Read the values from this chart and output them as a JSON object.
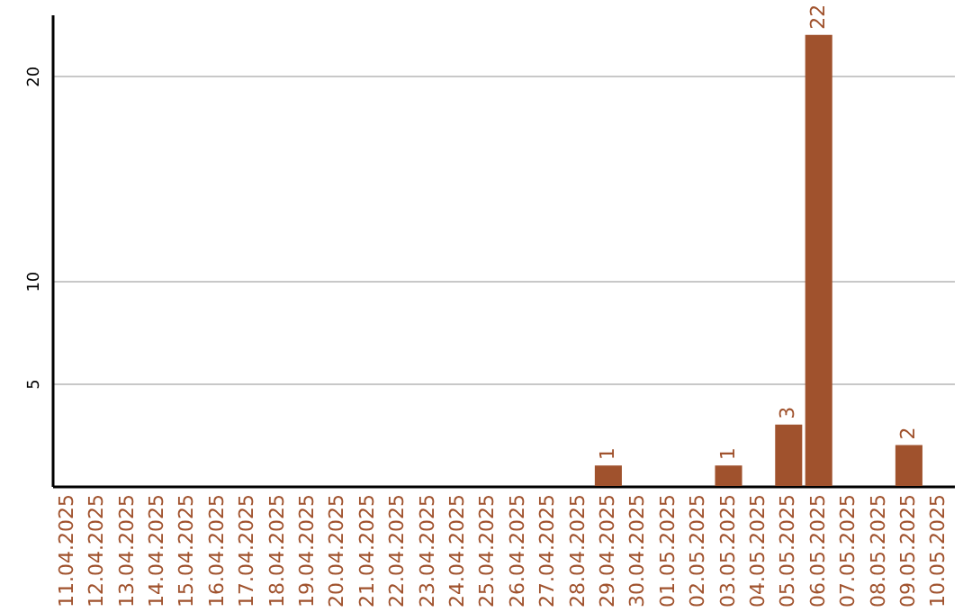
{
  "chart_data": {
    "type": "bar",
    "categories": [
      "11.04.2025",
      "12.04.2025",
      "13.04.2025",
      "14.04.2025",
      "15.04.2025",
      "16.04.2025",
      "17.04.2025",
      "18.04.2025",
      "19.04.2025",
      "20.04.2025",
      "21.04.2025",
      "22.04.2025",
      "23.04.2025",
      "24.04.2025",
      "25.04.2025",
      "26.04.2025",
      "27.04.2025",
      "28.04.2025",
      "29.04.2025",
      "30.04.2025",
      "01.05.2025",
      "02.05.2025",
      "03.05.2025",
      "04.05.2025",
      "05.05.2025",
      "06.05.2025",
      "07.05.2025",
      "08.05.2025",
      "09.05.2025",
      "10.05.2025"
    ],
    "values": [
      0,
      0,
      0,
      0,
      0,
      0,
      0,
      0,
      0,
      0,
      0,
      0,
      0,
      0,
      0,
      0,
      0,
      0,
      1,
      0,
      0,
      0,
      1,
      0,
      3,
      22,
      0,
      0,
      2,
      0
    ],
    "value_labels": [
      null,
      null,
      null,
      null,
      null,
      null,
      null,
      null,
      null,
      null,
      null,
      null,
      null,
      null,
      null,
      null,
      null,
      null,
      "1",
      null,
      null,
      null,
      "1",
      null,
      "3",
      "22",
      null,
      null,
      "2",
      null
    ],
    "color": "#a0522d",
    "ylim": [
      0,
      23
    ],
    "yticks": [
      5,
      10,
      20
    ],
    "grid": true
  }
}
